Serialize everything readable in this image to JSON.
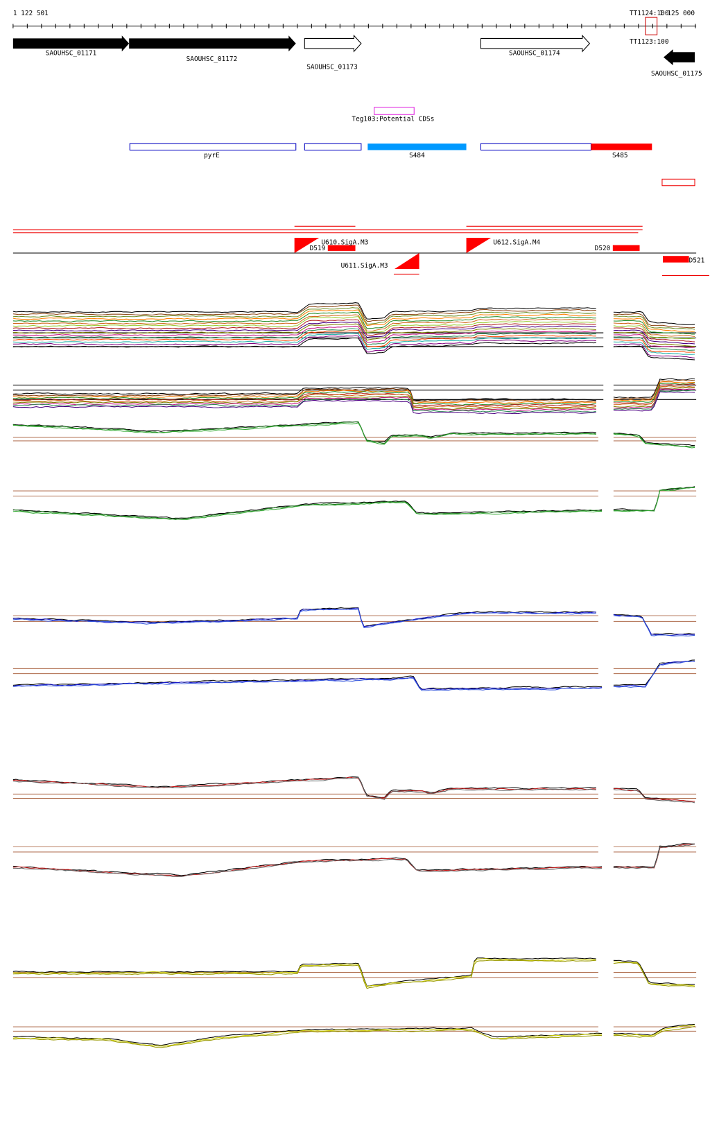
{
  "ruler": {
    "start": "1 122 501",
    "end": "1 125 000"
  },
  "markers": [
    "TT1124:100",
    "TT1123:100"
  ],
  "genes": [
    "SAOUHSC_01171",
    "SAOUHSC_01172",
    "SAOUHSC_01173",
    "SAOUHSC_01174",
    "SAOUHSC_01175"
  ],
  "potential_cds": "Teg103:Potential CDSs",
  "features": [
    "pyrE",
    "S484",
    "S485"
  ],
  "promoters": [
    "U610.SigA.M3",
    "D519",
    "U612.SigA.M4",
    "D520",
    "U611.SigA.M3",
    "D521"
  ]
}
